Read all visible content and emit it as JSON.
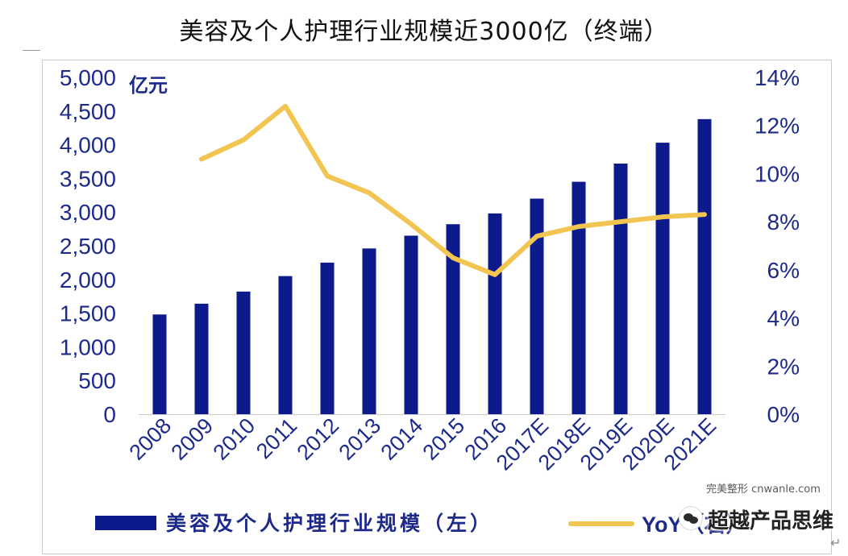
{
  "header": {
    "title": "美容及个人护理行业规模近3000亿（终端）"
  },
  "chart_data": {
    "type": "bar",
    "categories": [
      "2008",
      "2009",
      "2010",
      "2011",
      "2012",
      "2013",
      "2014",
      "2015",
      "2016",
      "2017E",
      "2018E",
      "2019E",
      "2020E",
      "2021E"
    ],
    "series": [
      {
        "name": "美容及个人护理行业规模（左）",
        "kind": "bar",
        "axis": "left",
        "color": "#0d1a8c",
        "values": [
          1480,
          1640,
          1820,
          2050,
          2250,
          2460,
          2650,
          2820,
          2980,
          3200,
          3450,
          3720,
          4030,
          4380
        ]
      },
      {
        "name": "YoY（右）",
        "kind": "line",
        "axis": "right",
        "color": "#f2c452",
        "values": [
          null,
          10.6,
          11.4,
          12.8,
          9.9,
          9.2,
          7.9,
          6.5,
          5.8,
          7.4,
          7.8,
          8.0,
          8.2,
          8.3
        ]
      }
    ],
    "left_axis": {
      "unit": "亿元",
      "ylim": [
        0,
        5000
      ],
      "tick_labels": [
        "0",
        "500",
        "1,000",
        "1,500",
        "2,000",
        "2,500",
        "3,000",
        "3,500",
        "4,000",
        "4,500",
        "5,000"
      ]
    },
    "right_axis": {
      "ylim": [
        0,
        14
      ],
      "tick_labels": [
        "0%",
        "2%",
        "4%",
        "6%",
        "8%",
        "10%",
        "12%",
        "14%"
      ]
    },
    "legend_position": "bottom",
    "grid": false,
    "colors": {
      "bar": "#0d1a8c",
      "line": "#f2c452",
      "axis_text": "#1d2a8a"
    }
  },
  "watermark": {
    "text": "完美整形 cnwanle.com"
  },
  "wechat_badge": {
    "name": "超越产品思维",
    "icon": "wechat-icon"
  }
}
